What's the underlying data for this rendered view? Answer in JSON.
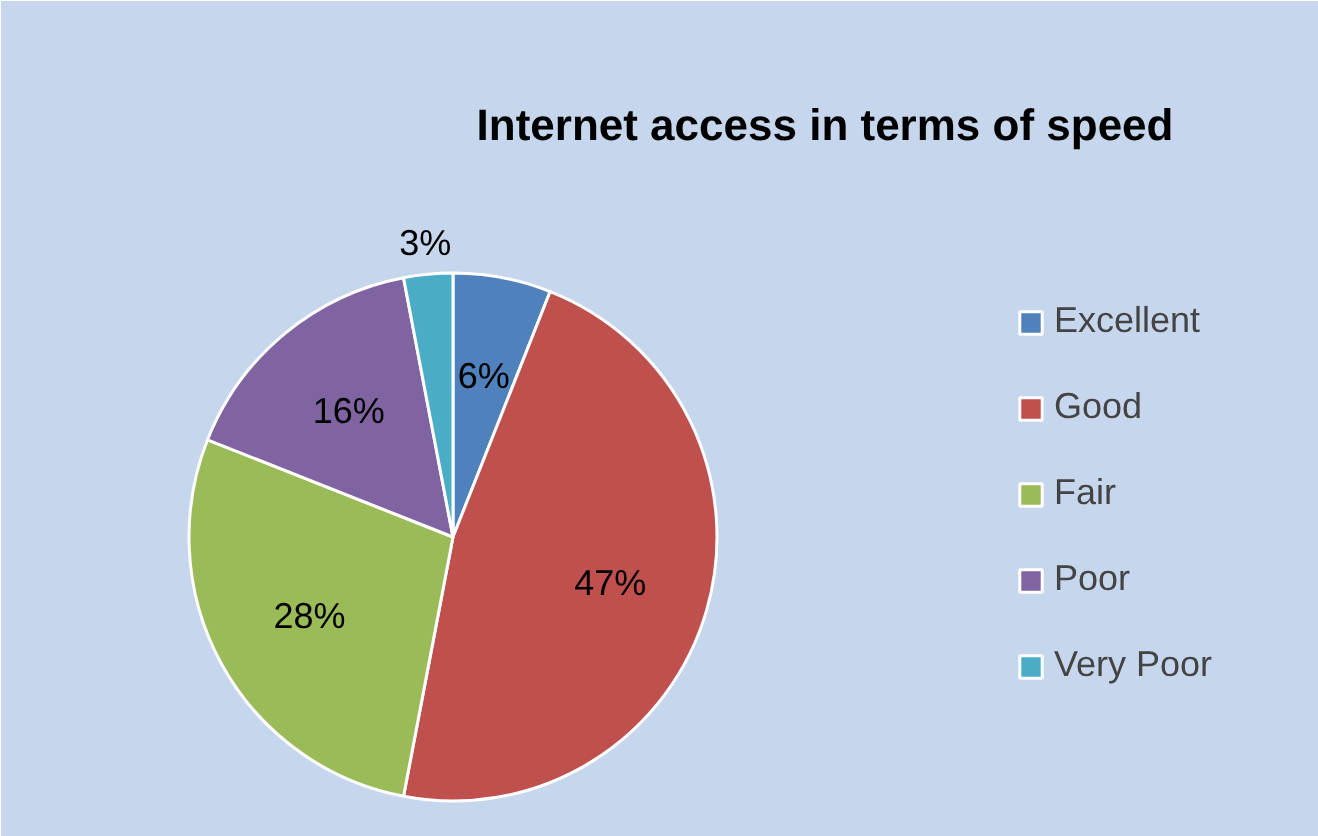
{
  "chart_data": {
    "type": "pie",
    "title": "Internet access in terms of speed",
    "categories": [
      "Excellent",
      "Good",
      "Fair",
      "Poor",
      "Very Poor"
    ],
    "values": [
      6,
      47,
      28,
      16,
      3
    ],
    "colors": [
      "#4f81bd",
      "#c0504d",
      "#9bbb59",
      "#8064a2",
      "#4bacc6"
    ],
    "value_labels": [
      "6%",
      "47%",
      "28%",
      "16%",
      "3%"
    ],
    "legend": "right"
  }
}
